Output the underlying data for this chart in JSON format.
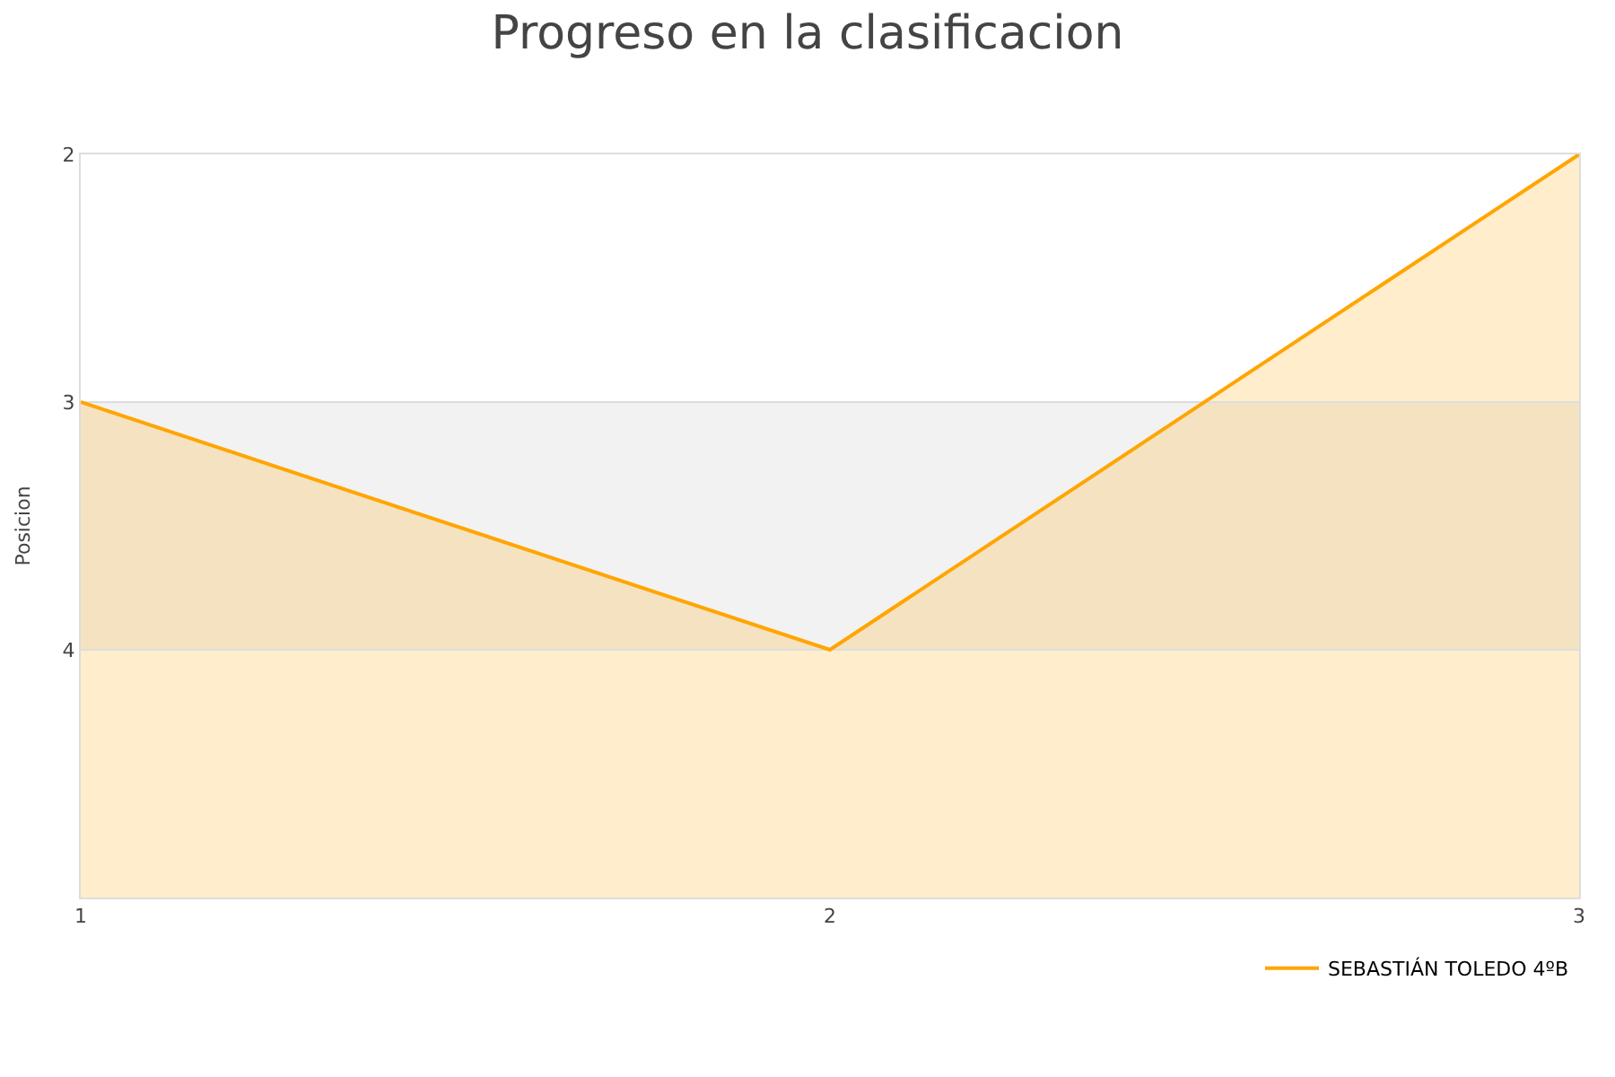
{
  "chart_data": {
    "type": "area",
    "title": "Progreso en la clasificacion",
    "ylabel": "Posicion",
    "x": [
      1,
      2,
      3
    ],
    "series": [
      {
        "name": "SEBASTIÁN TOLEDO 4ºB",
        "color": "#ffa500",
        "values": [
          3,
          4,
          2
        ]
      }
    ],
    "xlim": [
      1,
      3
    ],
    "xticks": [
      1,
      2,
      3
    ],
    "ylim": [
      5,
      2
    ],
    "yticks": [
      2,
      3,
      4
    ],
    "bands": [
      {
        "axis": "y",
        "from": 3,
        "to": 4,
        "color": "#f2f2f2"
      }
    ],
    "grid": "y",
    "legend": "bottom right",
    "marker": "none",
    "line_style": "solid"
  }
}
